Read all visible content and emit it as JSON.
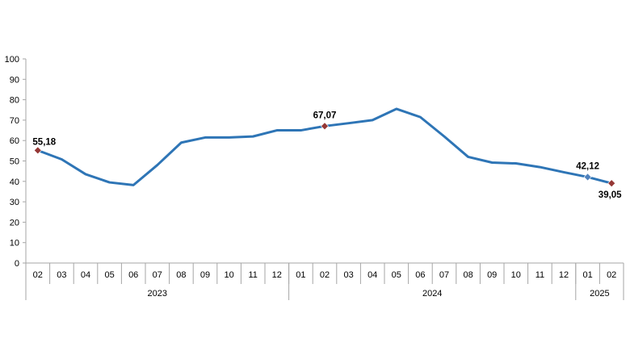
{
  "chart_data": {
    "type": "line",
    "categories": [
      "02",
      "03",
      "04",
      "05",
      "06",
      "07",
      "08",
      "09",
      "10",
      "11",
      "12",
      "01",
      "02",
      "03",
      "04",
      "05",
      "06",
      "07",
      "08",
      "09",
      "10",
      "11",
      "12",
      "01",
      "02"
    ],
    "years": [
      {
        "label": "2023",
        "start": 0,
        "end": 10
      },
      {
        "label": "2024",
        "start": 11,
        "end": 22
      },
      {
        "label": "2025",
        "start": 23,
        "end": 24
      }
    ],
    "series": [
      {
        "values": [
          55.18,
          50.8,
          43.5,
          39.5,
          38.2,
          48.0,
          59.0,
          61.5,
          61.5,
          62.0,
          65.0,
          65.0,
          67.07,
          68.5,
          70.0,
          75.5,
          71.5,
          62.0,
          52.0,
          49.2,
          48.8,
          47.0,
          44.5,
          42.12,
          39.05
        ]
      }
    ],
    "yticks": [
      0,
      10,
      20,
      30,
      40,
      50,
      60,
      70,
      80,
      90,
      100
    ],
    "ylim": [
      0,
      100
    ],
    "title": "",
    "xlabel": "",
    "ylabel": "",
    "grid": false,
    "legend": "none",
    "line_color": "#2e75b6",
    "marker_color": "#953735",
    "marker_color_alt": "#4f81bd",
    "annotations": [
      {
        "index": 0,
        "text": "55,18",
        "marker": "primary"
      },
      {
        "index": 12,
        "text": "67,07",
        "marker": "primary"
      },
      {
        "index": 23,
        "text": "42,12",
        "marker": "alt"
      },
      {
        "index": 24,
        "text": "39,05",
        "marker": "primary"
      }
    ]
  }
}
